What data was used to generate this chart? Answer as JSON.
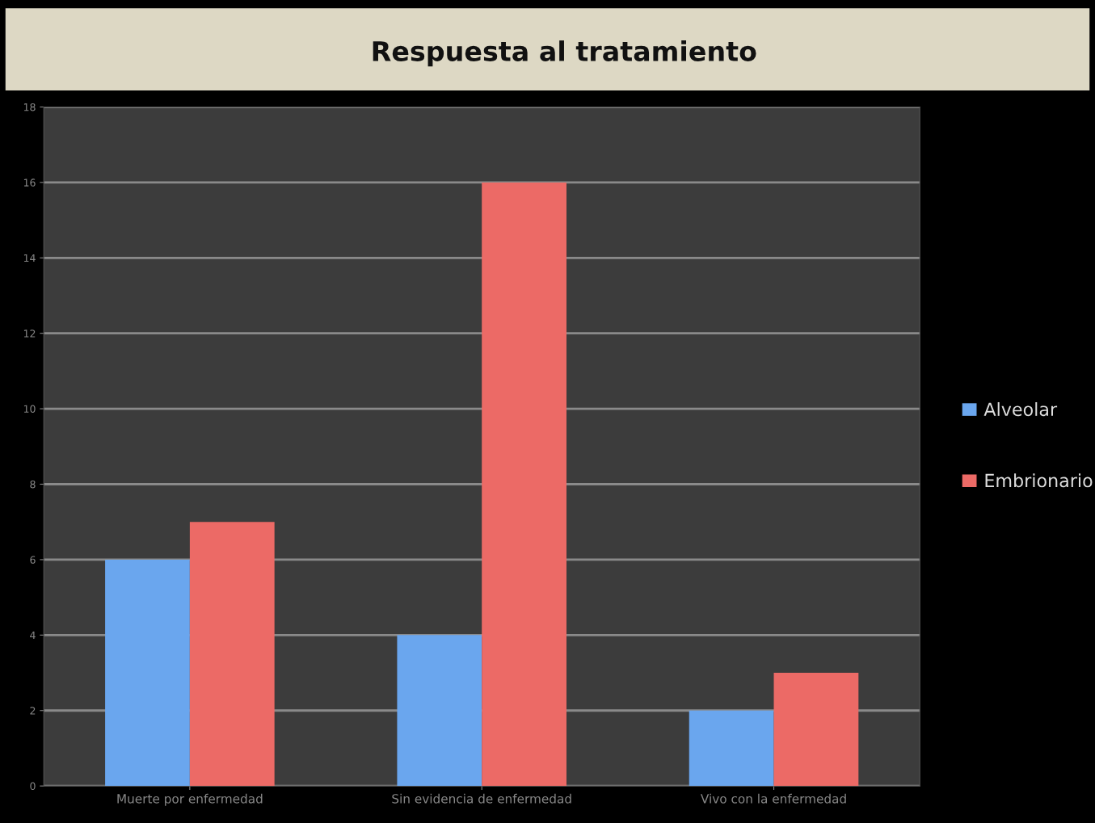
{
  "chart_data": {
    "type": "bar",
    "title": "Respuesta al tratamiento",
    "categories": [
      "Muerte por enfermedad",
      "Sin evidencia de enfermedad",
      "Vivo con la enfermedad"
    ],
    "series": [
      {
        "name": "Alveolar",
        "color": "#6aa6ee",
        "values": [
          6,
          4,
          2
        ]
      },
      {
        "name": "Embrionario",
        "color": "#ec6a66",
        "values": [
          7,
          16,
          3
        ]
      }
    ],
    "ylim": [
      0,
      18
    ],
    "yticks": [
      0,
      2,
      4,
      6,
      8,
      10,
      12,
      14,
      16,
      18
    ],
    "grid": "y",
    "legend": "right"
  }
}
